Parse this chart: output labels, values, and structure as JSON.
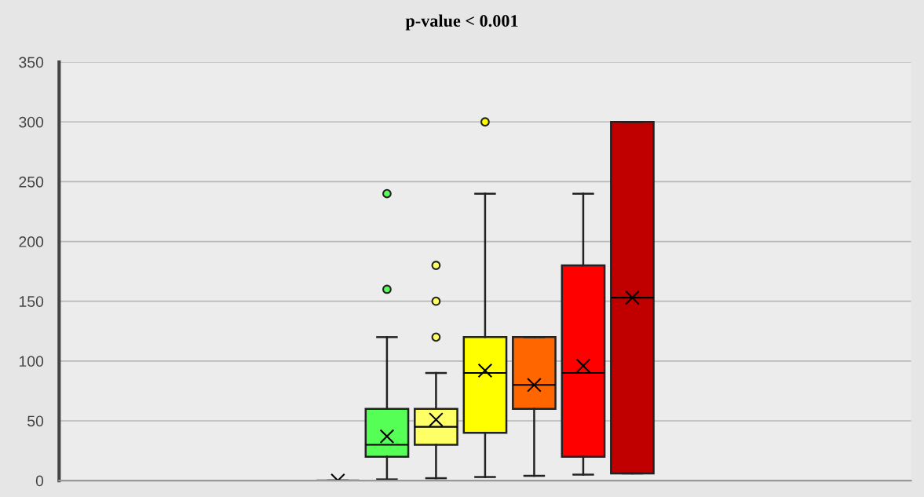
{
  "chart_data": {
    "type": "box",
    "title": "p-value < 0.001",
    "categories": [
      null
    ],
    "series": [
      {
        "color": "#222222",
        "boxes": [
          {
            "low": 0,
            "q1": 0,
            "median": 0,
            "q3": 0,
            "high": 0,
            "mean": 0
          }
        ]
      },
      {
        "color": "#55ff55",
        "boxes": [
          {
            "low": 1,
            "q1": 20,
            "median": 30,
            "q3": 60,
            "high": 120,
            "mean": 37,
            "outliers": [
              160,
              240
            ]
          }
        ]
      },
      {
        "color": "#ffff66",
        "boxes": [
          {
            "low": 2,
            "q1": 30,
            "median": 45,
            "q3": 60,
            "high": 90,
            "mean": 51,
            "outliers": [
              120,
              150,
              180
            ]
          }
        ]
      },
      {
        "color": "#ffff00",
        "boxes": [
          {
            "low": 3,
            "q1": 40,
            "median": 90,
            "q3": 120,
            "high": 240,
            "mean": 92,
            "outliers": [
              300
            ]
          }
        ]
      },
      {
        "color": "#ff6600",
        "boxes": [
          {
            "low": 4,
            "q1": 60,
            "median": 80,
            "q3": 120,
            "high": 120,
            "mean": 80
          }
        ]
      },
      {
        "color": "#ff0000",
        "boxes": [
          {
            "low": 5,
            "q1": 20,
            "median": 90,
            "q3": 180,
            "high": 240,
            "mean": 96
          }
        ]
      },
      {
        "color": "#c00000",
        "boxes": [
          {
            "low": 6,
            "q1": 6,
            "median": 153,
            "q3": 300,
            "high": 300,
            "mean": 153
          }
        ]
      }
    ],
    "ylim": [
      0,
      350
    ],
    "yticks": [
      0,
      50,
      100,
      150,
      200,
      250,
      300,
      350
    ],
    "grid": "y",
    "tick_labels": "y"
  }
}
